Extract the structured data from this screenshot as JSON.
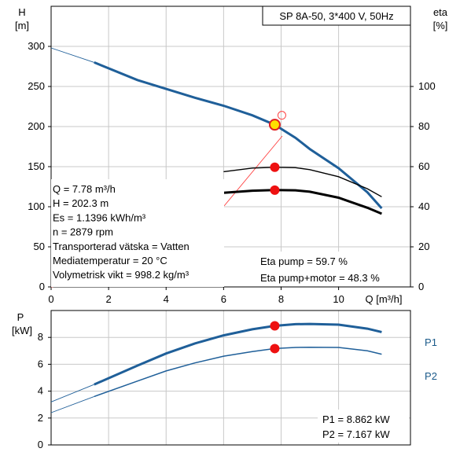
{
  "chart_data": [
    {
      "type": "line",
      "title": "SP 8A-50, 3*400 V, 50Hz",
      "xlabel": "Q [m³/h]",
      "ylabel_left": [
        "H",
        "[m]"
      ],
      "ylabel_right": [
        "eta",
        "[%]"
      ],
      "x_ticks": [
        "0",
        "2",
        "4",
        "6",
        "8",
        "10"
      ],
      "y_left_ticks": [
        "0",
        "50",
        "100",
        "150",
        "200",
        "250",
        "300"
      ],
      "y_right_ticks": [
        "0",
        "20",
        "40",
        "60",
        "80",
        "100"
      ],
      "xlim": [
        0,
        12.5
      ],
      "ylim_left": [
        0,
        350
      ],
      "ylim_right": [
        0,
        140
      ],
      "grid": true,
      "series": [
        {
          "color": "#1f5f99",
          "axis": "left",
          "extrapolated": {
            "x": [
              0,
              1.5
            ],
            "y": [
              298,
              280
            ]
          },
          "x": [
            1.5,
            3,
            4,
            5,
            6,
            7,
            7.78,
            8.5,
            9,
            10,
            11,
            11.5
          ],
          "y": [
            280,
            258,
            247,
            236,
            226,
            214,
            202.3,
            186,
            172,
            148,
            118,
            98
          ]
        },
        {
          "color": "#000000",
          "axis": "right",
          "x": [
            6,
            7,
            7.78,
            8.5,
            9,
            10,
            11,
            11.5
          ],
          "y": [
            57.5,
            59.3,
            59.7,
            59.5,
            58.5,
            55,
            49,
            45
          ]
        },
        {
          "color": "#000000",
          "axis": "right",
          "x": [
            6,
            7,
            7.78,
            8.5,
            9,
            10,
            11,
            11.5
          ],
          "y": [
            47,
            48,
            48.3,
            48.2,
            47.5,
            44.5,
            39.5,
            36.5
          ]
        }
      ],
      "operating_point": {
        "x": 7.78,
        "H": 202.3,
        "eta_pump": 59.7,
        "eta_pump_motor": 48.3
      },
      "info_lines": [
        "Q = 7.78 m³/h",
        "H = 202.3 m",
        "Es = 1.1396 kWh/m³",
        "n = 2879 rpm",
        "Transporterad vätska = Vatten",
        "Mediatemperatur = 20 °C",
        "Volymetrisk vikt = 998.2 kg/m³"
      ],
      "eta_labels": [
        "Eta pump = 59.7 %",
        "Eta pump+motor = 48.3 %"
      ]
    },
    {
      "type": "line",
      "ylabel": [
        "P",
        "[kW]"
      ],
      "y_ticks": [
        "0",
        "2",
        "4",
        "6",
        "8"
      ],
      "xlim": [
        0,
        12.5
      ],
      "ylim": [
        0,
        10
      ],
      "grid": true,
      "series": [
        {
          "name": "P1",
          "color": "#1f5f99",
          "extrapolated": {
            "x": [
              0,
              1.5
            ],
            "y": [
              3.2,
              4.5
            ]
          },
          "x": [
            1.5,
            3,
            4,
            5,
            6,
            7,
            7.78,
            8.5,
            9,
            10,
            11,
            11.5
          ],
          "y": [
            4.5,
            5.9,
            6.8,
            7.55,
            8.15,
            8.6,
            8.862,
            8.98,
            9.0,
            8.95,
            8.65,
            8.4
          ]
        },
        {
          "name": "P2",
          "color": "#1f5f99",
          "extrapolated": {
            "x": [
              0,
              1.5
            ],
            "y": [
              2.4,
              3.6
            ]
          },
          "x": [
            1.5,
            3,
            4,
            5,
            6,
            7,
            7.78,
            8.5,
            9,
            10,
            11,
            11.5
          ],
          "y": [
            3.6,
            4.75,
            5.5,
            6.1,
            6.6,
            6.95,
            7.167,
            7.25,
            7.27,
            7.25,
            7.0,
            6.75
          ]
        }
      ],
      "operating_point": {
        "x": 7.78,
        "P1": 8.862,
        "P2": 7.167
      },
      "value_labels": [
        "P1 = 8.862 kW",
        "P2 = 7.167 kW"
      ]
    }
  ]
}
